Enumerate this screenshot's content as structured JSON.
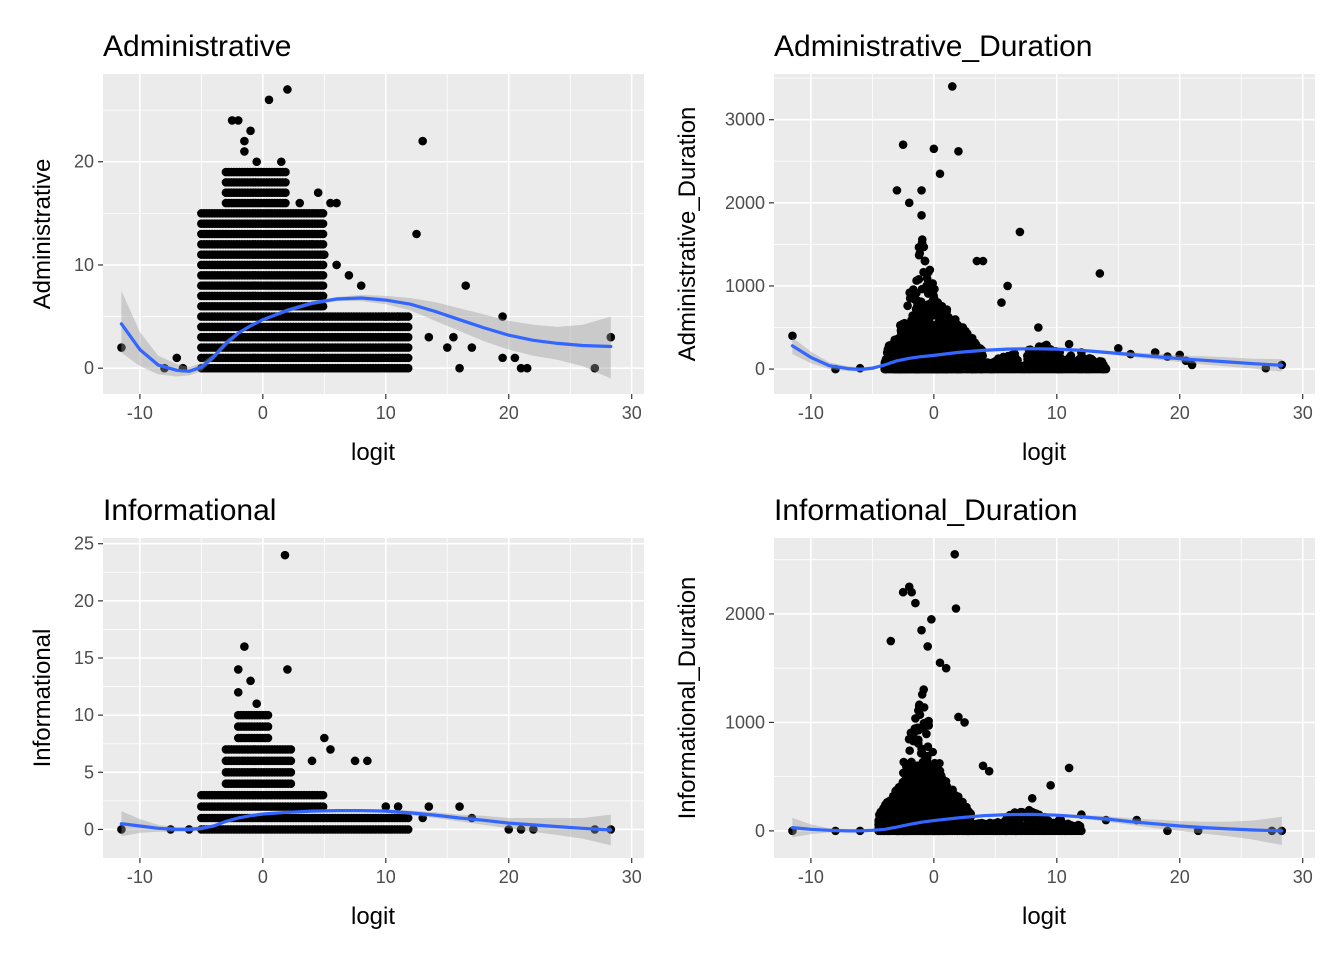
{
  "chart_data": [
    {
      "type": "scatter",
      "title": "Administrative",
      "xlabel": "logit",
      "ylabel": "Administrative",
      "xlim": [
        -13,
        31
      ],
      "ylim": [
        -2.5,
        28.5
      ],
      "x_ticks": [
        -10,
        0,
        10,
        20,
        30
      ],
      "x_tick_labels": [
        "-10",
        "0",
        "10",
        "20",
        "30"
      ],
      "y_ticks": [
        0,
        10,
        20
      ],
      "y_tick_labels": [
        "0",
        "10",
        "20"
      ],
      "grid": true,
      "colors": {
        "point": "#000000",
        "line": "#3366ff",
        "band": "#999999"
      },
      "points_dense": [
        {
          "xmin": -5,
          "xmax": 5,
          "y": [
            0,
            1,
            2,
            3,
            4,
            5,
            6,
            7,
            8,
            9,
            10,
            11,
            12,
            13,
            14,
            15
          ]
        },
        {
          "xmin": -3,
          "xmax": 2,
          "y": [
            16,
            17,
            18,
            19
          ]
        },
        {
          "xmin": 5,
          "xmax": 12,
          "y": [
            0,
            1,
            2,
            3,
            4,
            5
          ]
        }
      ],
      "points": [
        [
          -11.5,
          2
        ],
        [
          -8,
          0
        ],
        [
          -7,
          1
        ],
        [
          -6.5,
          0
        ],
        [
          -2.5,
          24
        ],
        [
          -2,
          24
        ],
        [
          -1.5,
          22
        ],
        [
          -1,
          23
        ],
        [
          -1.5,
          21
        ],
        [
          -0.5,
          20
        ],
        [
          0.5,
          26
        ],
        [
          2,
          27
        ],
        [
          1.5,
          20
        ],
        [
          3,
          16
        ],
        [
          4.5,
          17
        ],
        [
          5.5,
          16
        ],
        [
          6,
          16
        ],
        [
          4,
          12
        ],
        [
          5,
          11
        ],
        [
          6,
          10
        ],
        [
          7,
          9
        ],
        [
          8,
          8
        ],
        [
          10,
          5
        ],
        [
          11,
          5
        ],
        [
          13,
          22
        ],
        [
          12.5,
          13
        ],
        [
          16.5,
          8
        ],
        [
          13.5,
          3
        ],
        [
          15,
          2
        ],
        [
          15.5,
          3
        ],
        [
          16,
          0
        ],
        [
          17,
          2
        ],
        [
          19.5,
          5
        ],
        [
          19.5,
          1
        ],
        [
          20.5,
          1
        ],
        [
          21,
          0
        ],
        [
          21.5,
          0
        ],
        [
          27,
          0
        ],
        [
          28.3,
          3
        ]
      ],
      "smooth": {
        "x": [
          -11.5,
          -10,
          -8.5,
          -7,
          -6,
          -5,
          -4,
          -3,
          -2,
          -1,
          0,
          2,
          4,
          6,
          8,
          10,
          12,
          14,
          16,
          18,
          20,
          22,
          24,
          26,
          28.3
        ],
        "y": [
          4.3,
          1.8,
          0.3,
          -0.2,
          -0.3,
          0.1,
          1.1,
          2.4,
          3.4,
          4.1,
          4.7,
          5.6,
          6.3,
          6.7,
          6.8,
          6.6,
          6.2,
          5.5,
          4.7,
          3.9,
          3.2,
          2.7,
          2.4,
          2.2,
          2.1
        ],
        "ymin": [
          1.5,
          0.2,
          -0.6,
          -0.8,
          -0.7,
          -0.3,
          0.8,
          2.1,
          3.2,
          4.0,
          4.6,
          5.4,
          6.1,
          6.5,
          6.5,
          6.2,
          5.6,
          4.6,
          3.6,
          2.6,
          1.8,
          1.2,
          0.8,
          0.2,
          -1.0
        ],
        "ymax": [
          7.5,
          3.5,
          1.2,
          0.4,
          0.1,
          0.5,
          1.4,
          2.7,
          3.6,
          4.2,
          4.8,
          5.8,
          6.5,
          6.9,
          7.1,
          7.0,
          6.8,
          6.4,
          5.8,
          5.2,
          4.6,
          4.2,
          4.0,
          4.2,
          5.0
        ]
      }
    },
    {
      "type": "scatter",
      "title": "Administrative_Duration",
      "xlabel": "logit",
      "ylabel": "Administrative_Duration",
      "xlim": [
        -13,
        31
      ],
      "ylim": [
        -300,
        3550
      ],
      "x_ticks": [
        -10,
        0,
        10,
        20,
        30
      ],
      "x_tick_labels": [
        "-10",
        "0",
        "10",
        "20",
        "30"
      ],
      "y_ticks": [
        0,
        1000,
        2000,
        3000
      ],
      "y_tick_labels": [
        "0",
        "1000",
        "2000",
        "3000"
      ],
      "grid": true,
      "colors": {
        "point": "#000000",
        "line": "#3366ff",
        "band": "#999999"
      },
      "points_dense": [
        {
          "xmin": -4,
          "xmax": 4,
          "ymax": 900,
          "count": 900
        },
        {
          "xmin": -3,
          "xmax": 1,
          "ymax": 1600,
          "count": 200
        },
        {
          "xmin": 4,
          "xmax": 14,
          "ymax": 300,
          "count": 220
        }
      ],
      "points": [
        [
          -11.5,
          400
        ],
        [
          -8,
          0
        ],
        [
          -6,
          10
        ],
        [
          -2.5,
          2700
        ],
        [
          -2,
          2000
        ],
        [
          -1,
          1850
        ],
        [
          0,
          2650
        ],
        [
          0.5,
          2350
        ],
        [
          1.5,
          3400
        ],
        [
          2,
          2620
        ],
        [
          -1,
          2150
        ],
        [
          -3,
          2150
        ],
        [
          3.5,
          1300
        ],
        [
          4,
          1300
        ],
        [
          5.5,
          800
        ],
        [
          7,
          1650
        ],
        [
          6,
          1000
        ],
        [
          8.5,
          500
        ],
        [
          13.5,
          1150
        ],
        [
          11,
          300
        ],
        [
          12,
          200
        ],
        [
          15,
          250
        ],
        [
          16,
          180
        ],
        [
          18,
          200
        ],
        [
          19,
          150
        ],
        [
          20,
          170
        ],
        [
          20.5,
          100
        ],
        [
          21,
          50
        ],
        [
          27,
          10
        ],
        [
          28.3,
          50
        ]
      ],
      "smooth": {
        "x": [
          -11.5,
          -10,
          -8.5,
          -7,
          -6,
          -5,
          -4,
          -3,
          -2,
          -1,
          0,
          2,
          4,
          6,
          8,
          10,
          12,
          14,
          16,
          18,
          20,
          22,
          24,
          26,
          28.3
        ],
        "y": [
          280,
          140,
          40,
          5,
          -5,
          10,
          50,
          100,
          130,
          150,
          165,
          200,
          225,
          240,
          245,
          240,
          225,
          200,
          175,
          150,
          125,
          105,
          85,
          65,
          45
        ],
        "ymin": [
          180,
          70,
          0,
          -25,
          -30,
          -15,
          35,
          90,
          122,
          143,
          158,
          192,
          217,
          232,
          235,
          228,
          210,
          180,
          148,
          115,
          85,
          55,
          30,
          5,
          -30
        ],
        "ymax": [
          380,
          210,
          80,
          35,
          20,
          35,
          65,
          110,
          138,
          157,
          172,
          208,
          233,
          248,
          255,
          252,
          240,
          220,
          202,
          185,
          165,
          155,
          140,
          125,
          120
        ]
      }
    },
    {
      "type": "scatter",
      "title": "Informational",
      "xlabel": "logit",
      "ylabel": "Informational",
      "xlim": [
        -13,
        31
      ],
      "ylim": [
        -2.5,
        25.5
      ],
      "x_ticks": [
        -10,
        0,
        10,
        20,
        30
      ],
      "x_tick_labels": [
        "-10",
        "0",
        "10",
        "20",
        "30"
      ],
      "y_ticks": [
        0,
        5,
        10,
        15,
        20,
        25
      ],
      "y_tick_labels": [
        "0",
        "5",
        "10",
        "15",
        "20",
        "25"
      ],
      "grid": true,
      "colors": {
        "point": "#000000",
        "line": "#3366ff",
        "band": "#999999"
      },
      "points_dense": [
        {
          "xmin": -5,
          "xmax": 5,
          "y": [
            0,
            1,
            2,
            3
          ]
        },
        {
          "xmin": -3,
          "xmax": 2.5,
          "y": [
            4,
            5,
            6,
            7
          ]
        },
        {
          "xmin": -2,
          "xmax": 0.5,
          "y": [
            8,
            9,
            10
          ]
        },
        {
          "xmin": 5,
          "xmax": 12,
          "y": [
            0,
            1
          ]
        }
      ],
      "points": [
        [
          -11.5,
          0
        ],
        [
          -7.5,
          0
        ],
        [
          -6,
          0
        ],
        [
          1.8,
          24
        ],
        [
          -1.5,
          16
        ],
        [
          -2,
          14
        ],
        [
          2,
          14
        ],
        [
          -1,
          13
        ],
        [
          -2,
          12
        ],
        [
          -0.5,
          11
        ],
        [
          5,
          8
        ],
        [
          5.5,
          7
        ],
        [
          4,
          6
        ],
        [
          7.5,
          6
        ],
        [
          8.5,
          6
        ],
        [
          10,
          2
        ],
        [
          11,
          2
        ],
        [
          13.5,
          2
        ],
        [
          13,
          1
        ],
        [
          16,
          2
        ],
        [
          17,
          1
        ],
        [
          20,
          0
        ],
        [
          21,
          0
        ],
        [
          22,
          0
        ],
        [
          27,
          0
        ],
        [
          28.3,
          0
        ]
      ],
      "smooth": {
        "x": [
          -11.5,
          -10,
          -8.5,
          -7,
          -6,
          -5,
          -4,
          -3,
          -2,
          -1,
          0,
          2,
          4,
          6,
          8,
          10,
          12,
          14,
          16,
          18,
          20,
          22,
          24,
          26,
          28.3
        ],
        "y": [
          0.5,
          0.3,
          0.1,
          0.0,
          0.0,
          0.1,
          0.3,
          0.7,
          1.0,
          1.2,
          1.35,
          1.5,
          1.6,
          1.65,
          1.65,
          1.6,
          1.45,
          1.25,
          1.0,
          0.8,
          0.55,
          0.4,
          0.25,
          0.1,
          -0.05
        ],
        "ymin": [
          -0.6,
          -0.3,
          -0.2,
          -0.2,
          -0.2,
          -0.1,
          0.2,
          0.6,
          0.95,
          1.15,
          1.3,
          1.45,
          1.55,
          1.58,
          1.55,
          1.45,
          1.25,
          1.0,
          0.7,
          0.4,
          0.1,
          -0.2,
          -0.5,
          -0.8,
          -1.4
        ],
        "ymax": [
          1.6,
          0.9,
          0.4,
          0.2,
          0.2,
          0.3,
          0.4,
          0.8,
          1.05,
          1.25,
          1.4,
          1.55,
          1.65,
          1.72,
          1.75,
          1.75,
          1.65,
          1.5,
          1.3,
          1.2,
          1.0,
          1.0,
          1.0,
          1.0,
          1.3
        ]
      }
    },
    {
      "type": "scatter",
      "title": "Informational_Duration",
      "xlabel": "logit",
      "ylabel": "Informational_Duration",
      "xlim": [
        -13,
        31
      ],
      "ylim": [
        -250,
        2700
      ],
      "x_ticks": [
        -10,
        0,
        10,
        20,
        30
      ],
      "x_tick_labels": [
        "-10",
        "0",
        "10",
        "20",
        "30"
      ],
      "y_ticks": [
        0,
        1000,
        2000
      ],
      "y_tick_labels": [
        "0",
        "1000",
        "2000"
      ],
      "grid": true,
      "colors": {
        "point": "#000000",
        "line": "#3366ff",
        "band": "#999999"
      },
      "points_dense": [
        {
          "xmin": -4.5,
          "xmax": 3,
          "ymax": 700,
          "count": 850
        },
        {
          "xmin": -3,
          "xmax": 1,
          "ymax": 1400,
          "count": 200
        },
        {
          "xmin": 3,
          "xmax": 12,
          "ymax": 200,
          "count": 180
        }
      ],
      "points": [
        [
          -11.5,
          0
        ],
        [
          -8,
          0
        ],
        [
          -6,
          0
        ],
        [
          -2,
          2250
        ],
        [
          -1.8,
          2200
        ],
        [
          -2.5,
          2200
        ],
        [
          -1.5,
          2100
        ],
        [
          1.7,
          2550
        ],
        [
          1.8,
          2050
        ],
        [
          -0.2,
          1950
        ],
        [
          -1,
          1850
        ],
        [
          -3.5,
          1750
        ],
        [
          -0.5,
          1700
        ],
        [
          0.5,
          1550
        ],
        [
          1,
          1500
        ],
        [
          2,
          1050
        ],
        [
          2.5,
          1000
        ],
        [
          4,
          600
        ],
        [
          4.5,
          550
        ],
        [
          11,
          580
        ],
        [
          9.5,
          420
        ],
        [
          8,
          300
        ],
        [
          12,
          150
        ],
        [
          14,
          100
        ],
        [
          16.5,
          100
        ],
        [
          19,
          0
        ],
        [
          21.5,
          0
        ],
        [
          27.5,
          0
        ],
        [
          28.3,
          0
        ]
      ],
      "smooth": {
        "x": [
          -11.5,
          -10,
          -8.5,
          -7,
          -6,
          -5,
          -4,
          -3,
          -2,
          -1,
          0,
          2,
          4,
          6,
          8,
          10,
          12,
          14,
          16,
          18,
          20,
          22,
          24,
          26,
          28.3
        ],
        "y": [
          30,
          15,
          5,
          0,
          0,
          5,
          15,
          35,
          60,
          80,
          95,
          120,
          140,
          150,
          152,
          145,
          130,
          110,
          85,
          65,
          45,
          30,
          18,
          8,
          0
        ],
        "ymin": [
          -60,
          -30,
          -15,
          -15,
          -12,
          -5,
          8,
          30,
          56,
          76,
          91,
          115,
          134,
          143,
          143,
          133,
          113,
          86,
          55,
          25,
          0,
          -25,
          -50,
          -80,
          -130
        ],
        "ymax": [
          120,
          60,
          25,
          15,
          12,
          15,
          22,
          40,
          64,
          84,
          99,
          125,
          146,
          157,
          161,
          157,
          147,
          134,
          115,
          105,
          90,
          85,
          86,
          96,
          130
        ]
      }
    }
  ]
}
